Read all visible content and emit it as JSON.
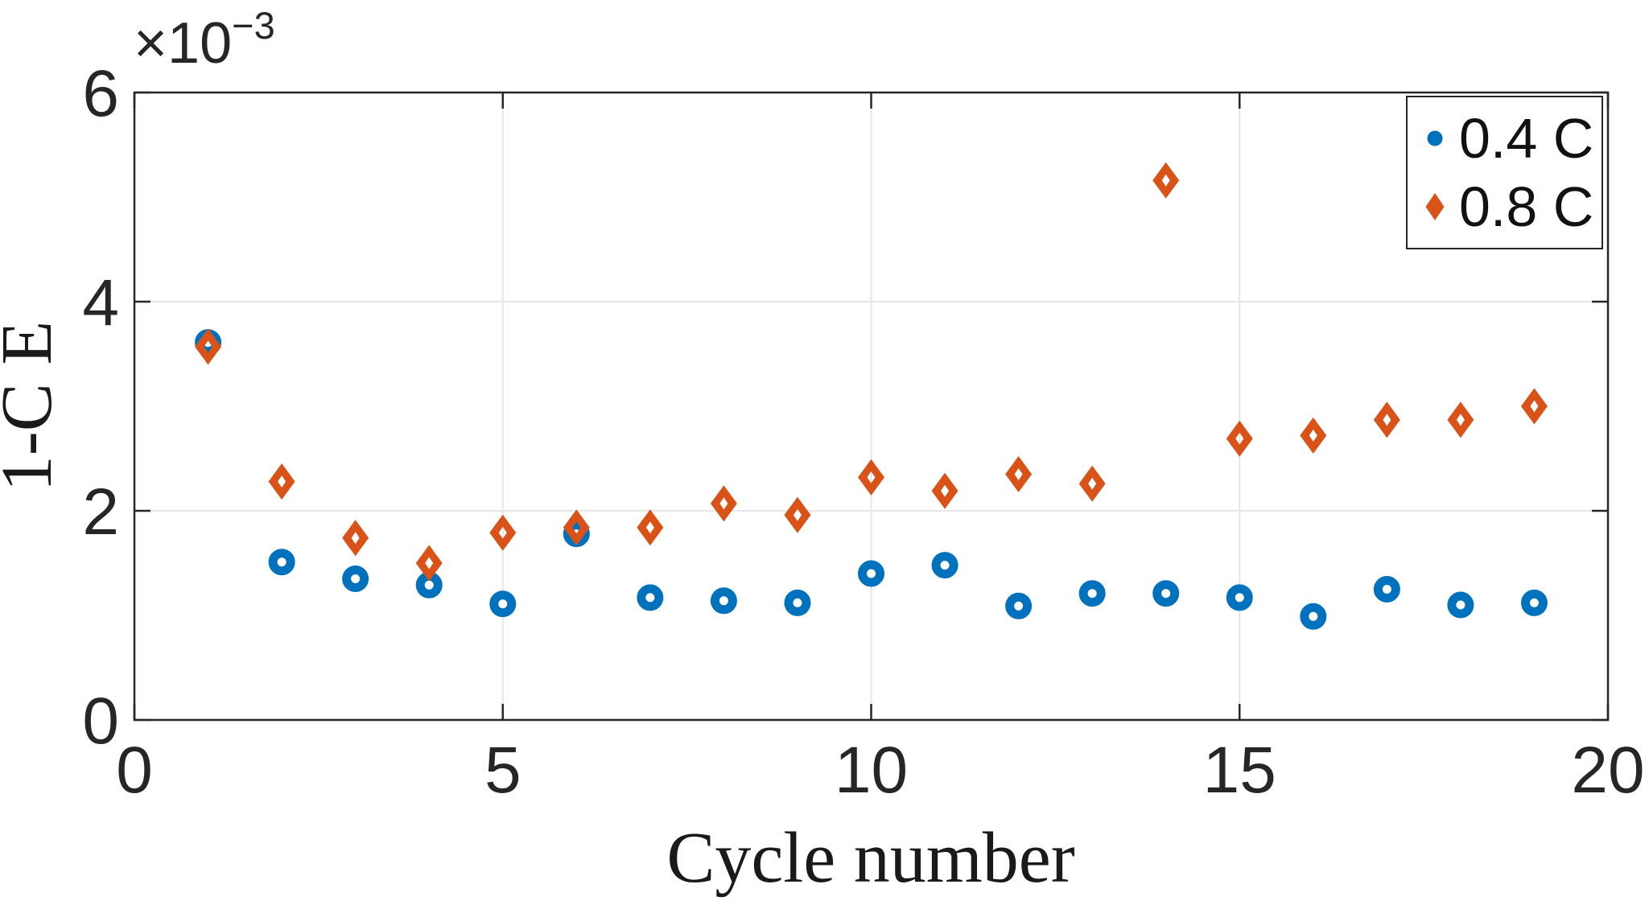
{
  "figure": {
    "background": "#ffffff",
    "axis_color": "#262626",
    "grid_color": "#e6e6e6"
  },
  "chart_data": {
    "type": "scatter",
    "title": "",
    "xlabel": "Cycle number",
    "ylabel": "1-C E",
    "y_multiplier_base": "×10",
    "y_multiplier_exp": "−3",
    "values_scale": "1e-3",
    "xlim": [
      0,
      20
    ],
    "ylim_scaled": [
      0,
      6
    ],
    "xticks": [
      0,
      5,
      10,
      15,
      20
    ],
    "yticks": [
      0,
      2,
      4,
      6
    ],
    "grid": true,
    "legend_position": "northeast",
    "x": [
      1,
      2,
      3,
      4,
      5,
      6,
      7,
      8,
      9,
      10,
      11,
      12,
      13,
      14,
      15,
      16,
      17,
      18,
      19
    ],
    "series": [
      {
        "name": "0.4 C",
        "marker": "circle",
        "color": "#0072BD",
        "values": [
          3.61,
          1.51,
          1.35,
          1.29,
          1.11,
          1.78,
          1.17,
          1.14,
          1.12,
          1.4,
          1.48,
          1.09,
          1.21,
          1.21,
          1.17,
          0.99,
          1.25,
          1.1,
          1.12
        ]
      },
      {
        "name": "0.8 C",
        "marker": "diamond",
        "color": "#D95319",
        "values": [
          3.57,
          2.28,
          1.74,
          1.5,
          1.79,
          1.84,
          1.84,
          2.07,
          1.96,
          2.32,
          2.19,
          2.35,
          2.26,
          5.16,
          2.69,
          2.72,
          2.87,
          2.87,
          3.0
        ]
      }
    ]
  }
}
